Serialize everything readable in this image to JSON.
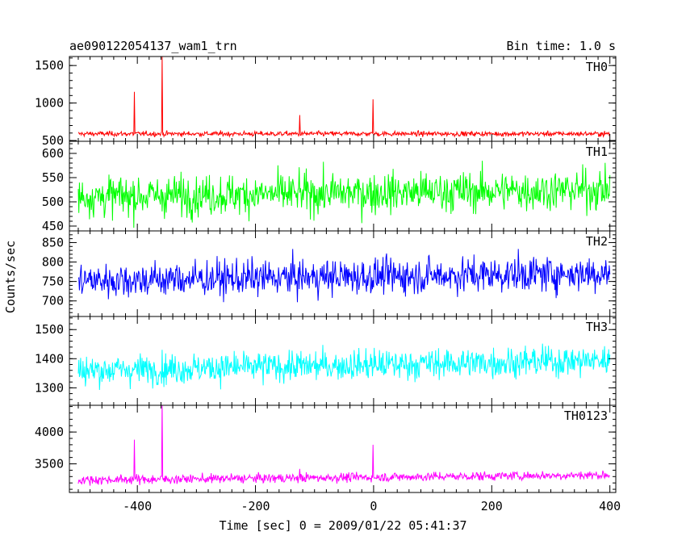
{
  "chart_data": {
    "type": "line",
    "title": "ae090122054137_wam1_trn",
    "bin_time_label": "Bin time: 1.0 s",
    "xlabel": "Time [sec] 0 = 2009/01/22 05:41:37",
    "ylabel": "Counts/sec",
    "xlim": [
      -515,
      410
    ],
    "x_ticks": [
      -400,
      -200,
      0,
      200,
      400
    ],
    "x_range": [
      -500,
      400
    ],
    "grid": false,
    "panels": [
      {
        "name": "TH0",
        "color": "#ff0000",
        "ylim": [
          490,
          1620
        ],
        "y_ticks": [
          500,
          1000,
          1500
        ],
        "baseline": 590,
        "noise": 30,
        "trend": 0,
        "spikes": [
          {
            "x": -405,
            "value": 1150
          },
          {
            "x": -358,
            "value": 1640
          },
          {
            "x": -125,
            "value": 840
          },
          {
            "x": -1,
            "value": 1050
          }
        ]
      },
      {
        "name": "TH1",
        "color": "#00ff00",
        "ylim": [
          440,
          625
        ],
        "y_ticks": [
          450,
          500,
          550,
          600
        ],
        "baseline": 515,
        "noise": 38,
        "trend": 15,
        "spikes": []
      },
      {
        "name": "TH2",
        "color": "#0000ff",
        "ylim": [
          660,
          880
        ],
        "y_ticks": [
          700,
          750,
          800,
          850
        ],
        "baseline": 758,
        "noise": 42,
        "trend": 20,
        "spikes": []
      },
      {
        "name": "TH3",
        "color": "#00ffff",
        "ylim": [
          1240,
          1545
        ],
        "y_ticks": [
          1300,
          1400,
          1500
        ],
        "baseline": 1370,
        "noise": 48,
        "trend": 35,
        "spikes": []
      },
      {
        "name": "TH0123",
        "color": "#ff00ff",
        "ylim": [
          3050,
          4420
        ],
        "y_ticks": [
          3500,
          4000
        ],
        "baseline": 3270,
        "noise": 65,
        "trend": 80,
        "spikes": [
          {
            "x": -405,
            "value": 3880
          },
          {
            "x": -358,
            "value": 4500
          },
          {
            "x": -125,
            "value": 3420
          },
          {
            "x": -1,
            "value": 3800
          }
        ]
      }
    ]
  }
}
